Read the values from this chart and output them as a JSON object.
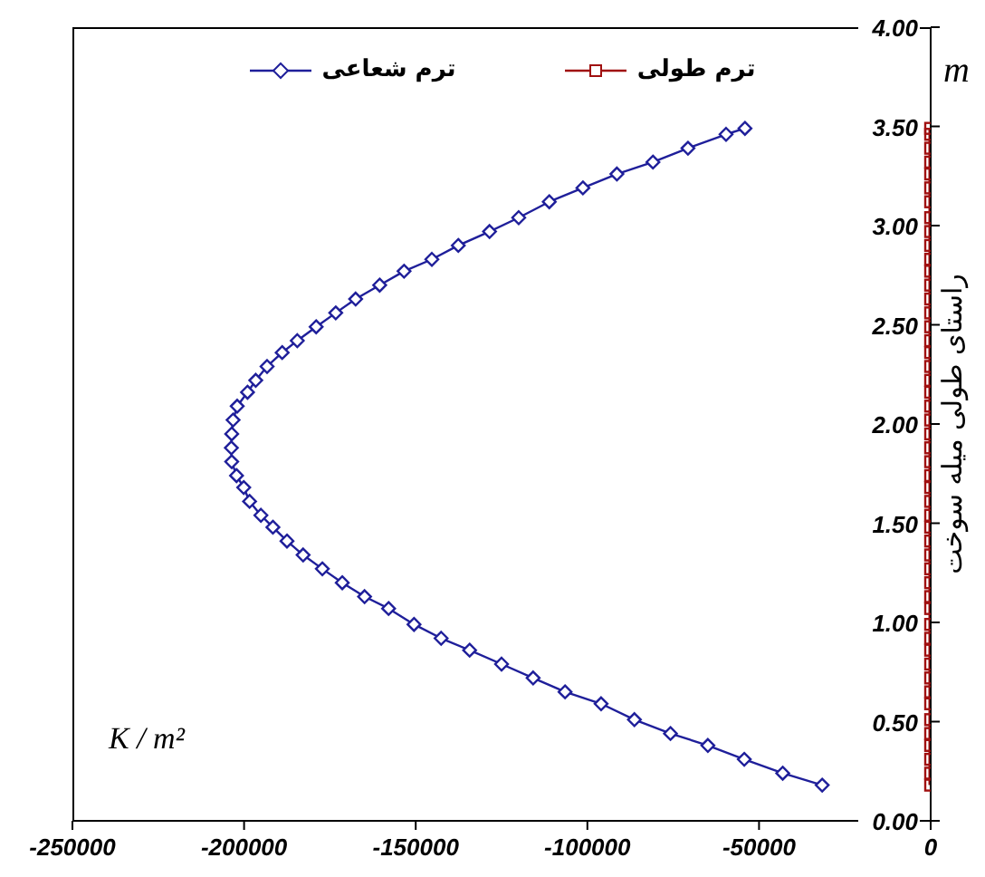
{
  "chart_data": {
    "type": "line",
    "series": [
      {
        "name": "ترم شعاعی",
        "color": "#1f1f9a",
        "marker": "diamond",
        "x": [
          -31600,
          -43100,
          -54300,
          -64900,
          -75800,
          -86300,
          -96000,
          -106500,
          -115800,
          -125000,
          -134300,
          -142600,
          -150500,
          -157900,
          -164900,
          -171400,
          -177200,
          -182800,
          -187500,
          -191600,
          -195100,
          -198400,
          -200100,
          -202200,
          -203600,
          -203700,
          -203600,
          -203200,
          -202000,
          -199000,
          -196600,
          -193300,
          -188900,
          -184500,
          -179000,
          -173300,
          -167500,
          -160500,
          -153400,
          -145300,
          -137600,
          -128500,
          -120000,
          -111100,
          -101300,
          -91400,
          -80900,
          -70700,
          -59600,
          -54100
        ],
        "values": [
          0.18,
          0.24,
          0.31,
          0.38,
          0.44,
          0.51,
          0.59,
          0.65,
          0.72,
          0.79,
          0.86,
          0.92,
          0.99,
          1.07,
          1.13,
          1.2,
          1.27,
          1.34,
          1.41,
          1.48,
          1.54,
          1.61,
          1.68,
          1.74,
          1.81,
          1.88,
          1.95,
          2.02,
          2.09,
          2.16,
          2.22,
          2.29,
          2.36,
          2.42,
          2.49,
          2.56,
          2.63,
          2.7,
          2.77,
          2.83,
          2.9,
          2.97,
          3.04,
          3.12,
          3.19,
          3.26,
          3.32,
          3.39,
          3.46,
          3.49
        ]
      },
      {
        "name": "ترم طولی",
        "color": "#a01010",
        "marker": "square",
        "x": [
          0,
          0,
          0,
          0,
          0,
          0,
          0,
          0,
          0,
          0,
          0,
          0,
          0,
          0,
          0,
          0,
          0,
          0,
          0,
          0,
          0,
          0,
          0,
          0,
          0,
          0,
          0,
          0,
          0,
          0,
          0,
          0,
          0,
          0,
          0,
          0,
          0,
          0,
          0,
          0,
          0,
          0,
          0,
          0,
          0,
          0,
          0,
          0,
          0,
          0
        ],
        "values": [
          0.18,
          0.24,
          0.31,
          0.38,
          0.44,
          0.51,
          0.59,
          0.65,
          0.72,
          0.79,
          0.86,
          0.92,
          0.99,
          1.07,
          1.13,
          1.2,
          1.27,
          1.34,
          1.41,
          1.48,
          1.54,
          1.61,
          1.68,
          1.74,
          1.81,
          1.88,
          1.95,
          2.02,
          2.09,
          2.16,
          2.22,
          2.29,
          2.36,
          2.42,
          2.49,
          2.56,
          2.63,
          2.7,
          2.77,
          2.83,
          2.9,
          2.97,
          3.04,
          3.12,
          3.19,
          3.26,
          3.32,
          3.39,
          3.46,
          3.49
        ]
      }
    ],
    "xlim": [
      -250000,
      0
    ],
    "xticks": [
      -250000,
      -200000,
      -150000,
      -100000,
      -50000,
      0
    ],
    "ylim": [
      0,
      4
    ],
    "yticks": [
      {
        "value": 0,
        "label": "0.00"
      },
      {
        "value": 0.5,
        "label": "0.50"
      },
      {
        "value": 1,
        "label": "1.00"
      },
      {
        "value": 1.5,
        "label": "1.50"
      },
      {
        "value": 2,
        "label": "2.00"
      },
      {
        "value": 2.5,
        "label": "2.50"
      },
      {
        "value": 3,
        "label": "3.00"
      },
      {
        "value": 3.5,
        "label": "3.50"
      },
      {
        "value": 4,
        "label": "4.00"
      }
    ],
    "ylabel": "راستای طولی میله سوخت",
    "annotations": [
      "K / m²",
      "m"
    ],
    "grid": false,
    "legend": "top",
    "line_style": "solid"
  }
}
